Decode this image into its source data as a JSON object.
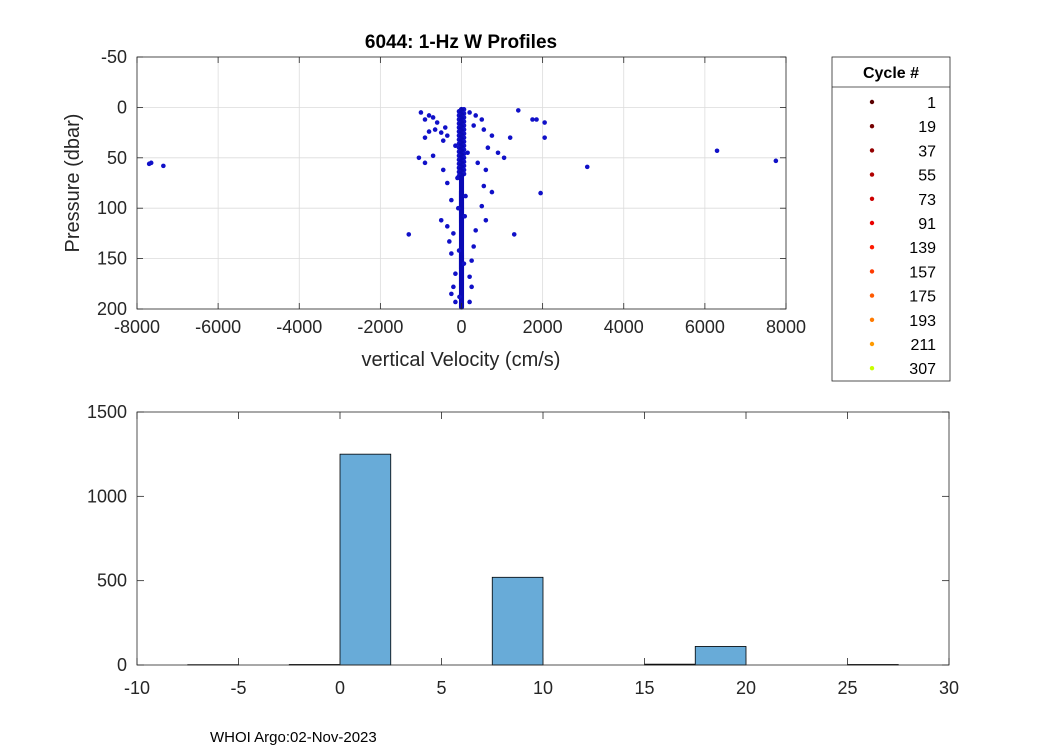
{
  "footer": "WHOI Argo:02-Nov-2023",
  "chart_data": [
    {
      "type": "scatter",
      "title": "6044: 1-Hz W Profiles",
      "xlabel": "vertical Velocity (cm/s)",
      "ylabel": "Pressure (dbar)",
      "xlim": [
        -8000,
        8000
      ],
      "ylim": [
        -50,
        200
      ],
      "y_reversed": true,
      "grid": true,
      "xticks": [
        -8000,
        -6000,
        -4000,
        -2000,
        0,
        2000,
        4000,
        6000,
        8000
      ],
      "xtick_labels": [
        "-8000",
        "-6000",
        "-4000",
        "-2000",
        "0",
        "2000",
        "4000",
        "6000",
        "8000"
      ],
      "yticks": [
        -50,
        0,
        50,
        100,
        150,
        200
      ],
      "ytick_labels": [
        "-50",
        "0",
        "50",
        "100",
        "150",
        "200"
      ],
      "point_color": "#1010c8",
      "legend": {
        "title": "Cycle #",
        "placement": "outside-right",
        "entries": [
          {
            "label": "1",
            "color": "#5a0000"
          },
          {
            "label": "19",
            "color": "#760000"
          },
          {
            "label": "37",
            "color": "#930000"
          },
          {
            "label": "55",
            "color": "#b00000"
          },
          {
            "label": "73",
            "color": "#cd0000"
          },
          {
            "label": "91",
            "color": "#ea0000"
          },
          {
            "label": "139",
            "color": "#ff1a00"
          },
          {
            "label": "157",
            "color": "#ff3a00"
          },
          {
            "label": "175",
            "color": "#ff5a00"
          },
          {
            "label": "193",
            "color": "#ff7a00"
          },
          {
            "label": "211",
            "color": "#ff9a00"
          },
          {
            "label": "307",
            "color": "#c8ff00"
          }
        ]
      },
      "points": [
        [
          -7650,
          55
        ],
        [
          -7700,
          56
        ],
        [
          -7350,
          58
        ],
        [
          6300,
          43
        ],
        [
          7750,
          53
        ],
        [
          3100,
          59
        ],
        [
          1400,
          3
        ],
        [
          1750,
          12
        ],
        [
          1850,
          12
        ],
        [
          2050,
          15
        ],
        [
          2050,
          30
        ],
        [
          1950,
          85
        ],
        [
          1300,
          126
        ],
        [
          -1300,
          126
        ],
        [
          -1000,
          5
        ],
        [
          -800,
          8
        ],
        [
          -900,
          12
        ],
        [
          -700,
          10
        ],
        [
          -600,
          15
        ],
        [
          -650,
          22
        ],
        [
          -400,
          20
        ],
        [
          -500,
          25
        ],
        [
          -350,
          28
        ],
        [
          -450,
          33
        ],
        [
          -800,
          24
        ],
        [
          -900,
          30
        ],
        [
          -700,
          48
        ],
        [
          -1050,
          50
        ],
        [
          -900,
          55
        ],
        [
          -450,
          62
        ],
        [
          -350,
          75
        ],
        [
          -250,
          92
        ],
        [
          -500,
          112
        ],
        [
          -350,
          118
        ],
        [
          -200,
          125
        ],
        [
          -300,
          133
        ],
        [
          -250,
          145
        ],
        [
          -150,
          165
        ],
        [
          -200,
          178
        ],
        [
          -250,
          185
        ],
        [
          -150,
          193
        ],
        [
          200,
          5
        ],
        [
          350,
          8
        ],
        [
          500,
          12
        ],
        [
          300,
          18
        ],
        [
          550,
          22
        ],
        [
          750,
          28
        ],
        [
          1200,
          30
        ],
        [
          650,
          40
        ],
        [
          900,
          45
        ],
        [
          1050,
          50
        ],
        [
          400,
          55
        ],
        [
          600,
          62
        ],
        [
          550,
          78
        ],
        [
          750,
          84
        ],
        [
          500,
          98
        ],
        [
          600,
          112
        ],
        [
          350,
          122
        ],
        [
          300,
          138
        ],
        [
          250,
          152
        ],
        [
          200,
          168
        ],
        [
          250,
          178
        ],
        [
          200,
          193
        ],
        [
          -150,
          38
        ],
        [
          150,
          45
        ],
        [
          -100,
          70
        ],
        [
          100,
          88
        ],
        [
          -80,
          100
        ],
        [
          80,
          108
        ],
        [
          -60,
          142
        ],
        [
          60,
          155
        ],
        [
          -50,
          188
        ]
      ]
    },
    {
      "type": "bar",
      "xlim": [
        -10,
        30
      ],
      "ylim": [
        0,
        1500
      ],
      "xticks": [
        -10,
        -5,
        0,
        5,
        10,
        15,
        20,
        25,
        30
      ],
      "xtick_labels": [
        "-10",
        "-5",
        "0",
        "5",
        "10",
        "15",
        "20",
        "25",
        "30"
      ],
      "yticks": [
        0,
        500,
        1000,
        1500
      ],
      "ytick_labels": [
        "0",
        "500",
        "1000",
        "1500"
      ],
      "bar_color": "#68abd8",
      "bin_width": 2.5,
      "bins": [
        {
          "left": -7.5,
          "value": 2
        },
        {
          "left": -2.5,
          "value": 3
        },
        {
          "left": 0,
          "value": 1250
        },
        {
          "left": 7.5,
          "value": 520
        },
        {
          "left": 15,
          "value": 5
        },
        {
          "left": 17.5,
          "value": 110
        },
        {
          "left": 25,
          "value": 3
        }
      ]
    }
  ]
}
